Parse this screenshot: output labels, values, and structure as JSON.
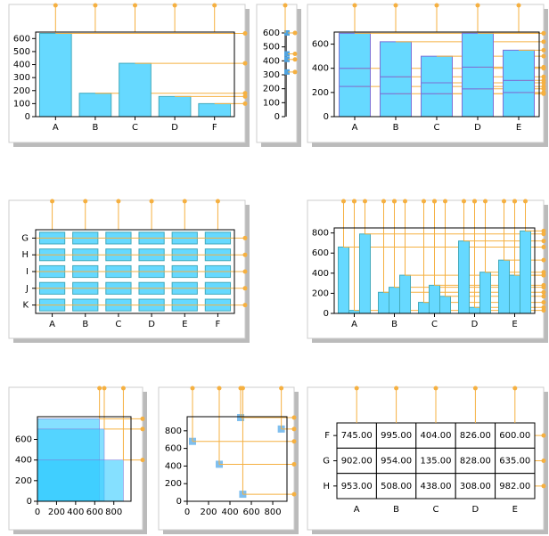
{
  "chart_data": [
    {
      "type": "bar",
      "categories": [
        "A",
        "B",
        "C",
        "D",
        "F"
      ],
      "values": [
        640,
        180,
        410,
        155,
        100
      ],
      "color": "#66d9ff",
      "ylim": [
        0,
        650
      ],
      "yticks": [
        0,
        100,
        200,
        300,
        400,
        500,
        600
      ]
    },
    {
      "type": "strip",
      "values": [
        600,
        450,
        410,
        320
      ],
      "color": "#4fa3e0",
      "ylim": [
        0,
        600
      ],
      "yticks": [
        0,
        100,
        200,
        300,
        400,
        500,
        600
      ]
    },
    {
      "type": "stacked_bar",
      "categories": [
        "A",
        "B",
        "C",
        "D",
        "E"
      ],
      "color": "#66d9ff",
      "series": [
        {
          "values": [
            250,
            190,
            190,
            230,
            200
          ]
        },
        {
          "values": [
            150,
            140,
            90,
            180,
            100
          ]
        },
        {
          "values": [
            290,
            290,
            220,
            280,
            250
          ]
        }
      ],
      "ylim": [
        0,
        700
      ],
      "yticks": [
        0,
        200,
        400,
        600
      ]
    },
    {
      "type": "grid",
      "categories": [
        "A",
        "B",
        "C",
        "D",
        "E",
        "F"
      ],
      "rows": [
        "G",
        "H",
        "I",
        "J",
        "K"
      ],
      "color": "#66d9ff"
    },
    {
      "type": "grouped_bar",
      "categories": [
        "A",
        "B",
        "C",
        "D",
        "E"
      ],
      "color": "#66d9ff",
      "series": [
        {
          "values": [
            660,
            210,
            110,
            720,
            530
          ]
        },
        {
          "values": [
            30,
            260,
            280,
            60,
            380
          ]
        },
        {
          "values": [
            790,
            380,
            170,
            410,
            820
          ]
        }
      ],
      "ylim": [
        0,
        850
      ],
      "yticks": [
        0,
        200,
        400,
        600,
        800
      ]
    },
    {
      "type": "rectangles",
      "color": "#33ccff",
      "rects": [
        {
          "x": [
            0,
            650
          ],
          "y": [
            0,
            800
          ]
        },
        {
          "x": [
            0,
            700
          ],
          "y": [
            0,
            700
          ]
        },
        {
          "x": [
            0,
            900
          ],
          "y": [
            0,
            400
          ]
        }
      ],
      "xlim": [
        0,
        980
      ],
      "ylim": [
        0,
        820
      ],
      "xticks": [
        0,
        200,
        400,
        600,
        800
      ],
      "yticks": [
        0,
        200,
        400,
        600
      ]
    },
    {
      "type": "scatter",
      "color": "#7fbfef",
      "x": [
        50,
        300,
        500,
        520,
        880
      ],
      "y": [
        680,
        420,
        950,
        80,
        820
      ],
      "xlim": [
        0,
        933
      ],
      "ylim": [
        0,
        960
      ],
      "xticks": [
        0,
        200,
        400,
        600,
        800
      ],
      "yticks": [
        0,
        200,
        400,
        600,
        800
      ]
    },
    {
      "type": "table",
      "columns": [
        "A",
        "B",
        "C",
        "D",
        "E"
      ],
      "rows": [
        "F",
        "G",
        "H"
      ],
      "cells": [
        [
          "745.00",
          "995.00",
          "404.00",
          "826.00",
          "600.00"
        ],
        [
          "902.00",
          "954.00",
          "135.00",
          "828.00",
          "635.00"
        ],
        [
          "953.00",
          "508.00",
          "438.00",
          "308.00",
          "982.00"
        ]
      ]
    }
  ]
}
